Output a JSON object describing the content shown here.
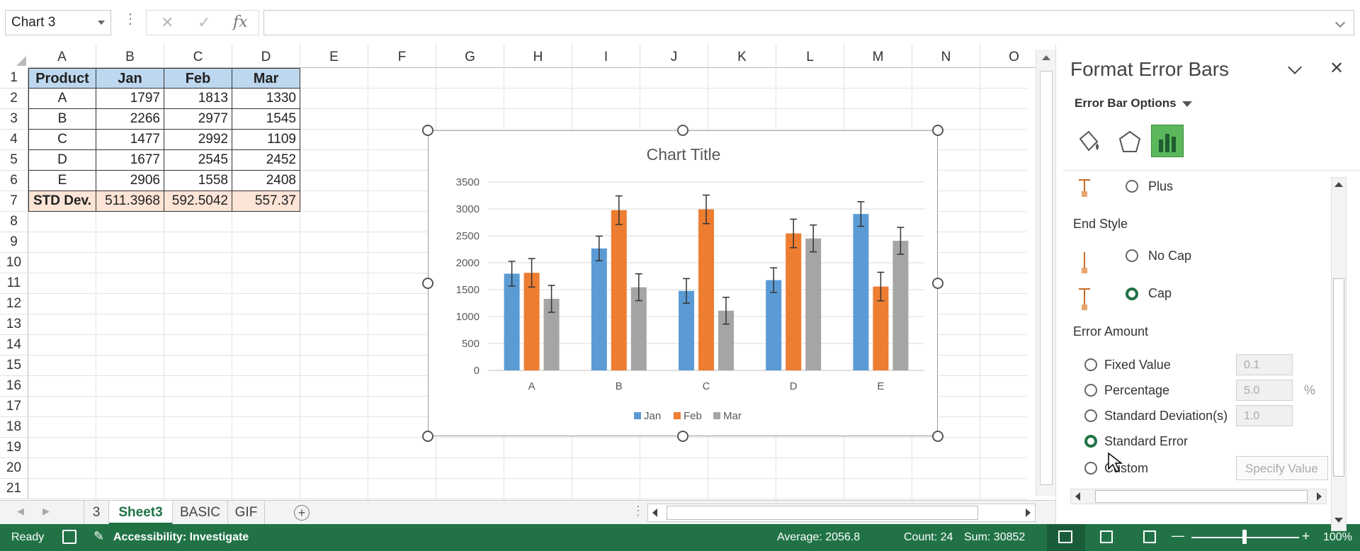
{
  "formula_bar": {
    "name_box": "Chart 3",
    "cancel_glyph": "✕",
    "enter_glyph": "✓",
    "fx_glyph": "fx",
    "formula": ""
  },
  "columns": [
    "A",
    "B",
    "C",
    "D",
    "E",
    "F",
    "G",
    "H",
    "I",
    "J",
    "K",
    "L",
    "M",
    "N",
    "O"
  ],
  "rows": [
    "1",
    "2",
    "3",
    "4",
    "5",
    "6",
    "7",
    "8",
    "9",
    "10",
    "11",
    "12",
    "13",
    "14",
    "15",
    "16",
    "17",
    "18",
    "19",
    "20",
    "21"
  ],
  "table": {
    "headers": [
      "Product",
      "Jan",
      "Feb",
      "Mar"
    ],
    "rows": [
      [
        "A",
        "1797",
        "1813",
        "1330"
      ],
      [
        "B",
        "2266",
        "2977",
        "1545"
      ],
      [
        "C",
        "1477",
        "2992",
        "1109"
      ],
      [
        "D",
        "1677",
        "2545",
        "2452"
      ],
      [
        "E",
        "2906",
        "1558",
        "2408"
      ]
    ],
    "std_row": [
      "STD Dev.",
      "511.3968",
      "592.5042",
      "557.37"
    ]
  },
  "chart_data": {
    "type": "bar",
    "title": "Chart Title",
    "categories": [
      "A",
      "B",
      "C",
      "D",
      "E"
    ],
    "series": [
      {
        "name": "Jan",
        "values": [
          1797,
          2266,
          1477,
          1677,
          2906
        ],
        "color": "#5b9bd5",
        "error": [
          [
            228.7,
            228.7
          ],
          [
            228.7,
            228.7
          ],
          [
            228.7,
            228.7
          ],
          [
            228.7,
            228.7
          ],
          [
            228.7,
            228.7
          ]
        ]
      },
      {
        "name": "Feb",
        "values": [
          1813,
          2977,
          2992,
          2545,
          1558
        ],
        "color": "#ed7d31",
        "error": [
          [
            265,
            265
          ],
          [
            265,
            265
          ],
          [
            265,
            265
          ],
          [
            265,
            265
          ],
          [
            265,
            265
          ]
        ]
      },
      {
        "name": "Mar",
        "values": [
          1330,
          1545,
          1109,
          2452,
          2408
        ],
        "color": "#a5a5a5",
        "error": [
          [
            249.3,
            249.3
          ],
          [
            249.3,
            249.3
          ],
          [
            249.3,
            249.3
          ],
          [
            249.3,
            249.3
          ],
          [
            249.3,
            249.3
          ]
        ]
      }
    ],
    "yticks": [
      "0",
      "500",
      "1000",
      "1500",
      "2000",
      "2500",
      "3000",
      "3500"
    ],
    "ylim": [
      0,
      3500
    ],
    "grid": true,
    "legend": "bottom"
  },
  "sheet_tabs": {
    "nav_prev": "◀",
    "nav_next": "▶",
    "items": [
      "3",
      "Sheet3",
      "BASIC",
      "GIF"
    ],
    "active": "Sheet3",
    "add": "+"
  },
  "status": {
    "ready": "Ready",
    "accessibility": "Accessibility: Investigate",
    "average": "Average: 2056.8",
    "count": "Count: 24",
    "sum": "Sum: 30852",
    "zoom": "100%",
    "zoom_minus": "—",
    "zoom_plus": "+"
  },
  "pane": {
    "title": "Format Error Bars",
    "section": "Error Bar Options",
    "plus_label": "Plus",
    "end_style_label": "End Style",
    "no_cap_label": "No Cap",
    "cap_label": "Cap",
    "error_amount_label": "Error Amount",
    "fixed_value_label": "Fixed Value",
    "fixed_value": "0.1",
    "percentage_label": "Percentage",
    "percentage_value": "5.0",
    "percent_sign": "%",
    "stddev_label": "Standard Deviation(s)",
    "stddev_value": "1.0",
    "std_error_label": "Standard Error",
    "custom_label": "Custom",
    "specify_value_label": "Specify Value",
    "selected_amount": "Standard Error",
    "selected_end_style": "Cap"
  },
  "colors": {
    "accent": "#217346",
    "header_fill": "#bdd7ee",
    "std_fill": "#fce4d6"
  }
}
